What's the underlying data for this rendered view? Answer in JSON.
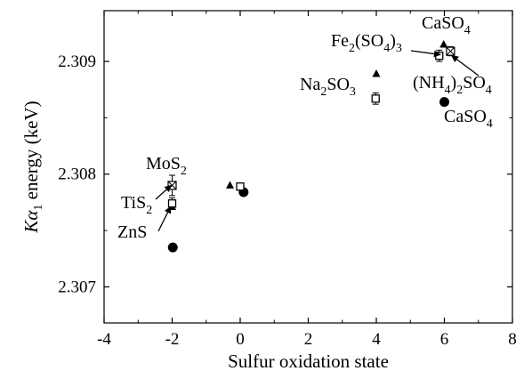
{
  "chart_data": {
    "type": "scatter",
    "title": "",
    "xlabel": "Sulfur oxidation state",
    "ylabel": {
      "base": "K",
      "greek": "α",
      "sub": "1",
      "rest": " energy (keV)"
    },
    "xlim": [
      -4,
      8
    ],
    "ylim": [
      2.30668,
      2.30945
    ],
    "xticks": [
      -4,
      -2,
      0,
      2,
      4,
      6,
      8
    ],
    "xtick_labels": [
      "-4",
      "-2",
      "0",
      "2",
      "4",
      "6",
      "8"
    ],
    "yticks": [
      2.307,
      2.308,
      2.309
    ],
    "ytick_labels": [
      "2.307",
      "2.308",
      "2.309"
    ],
    "grid": false,
    "series": [
      {
        "marker": "filled-circle",
        "color": "#000000",
        "points": [
          {
            "x": -1.98,
            "y": 2.30735
          },
          {
            "x": 0.1,
            "y": 2.30784
          },
          {
            "x": 6.0,
            "y": 2.30864
          }
        ]
      },
      {
        "marker": "filled-triangle",
        "color": "#000000",
        "points": [
          {
            "x": -2.0,
            "y": 2.30771
          },
          {
            "x": -0.3,
            "y": 2.3079
          },
          {
            "x": 4.0,
            "y": 2.30889
          },
          {
            "x": 5.98,
            "y": 2.30915
          }
        ]
      },
      {
        "marker": "open-square",
        "color": "#000000",
        "points": [
          {
            "x": -2.0,
            "y": 2.30774,
            "err": 5e-05
          },
          {
            "x": 0.0,
            "y": 2.30789,
            "err": 2e-05
          },
          {
            "x": 3.98,
            "y": 2.30867,
            "err": 5e-05
          },
          {
            "x": 5.85,
            "y": 2.30905,
            "err": 5e-05
          }
        ]
      },
      {
        "marker": "crossed-square",
        "color": "#000000",
        "points": [
          {
            "x": -2.0,
            "y": 2.3079,
            "err": 9e-05
          },
          {
            "x": 6.18,
            "y": 2.30909,
            "err": 4e-05
          }
        ]
      }
    ],
    "annotations": [
      {
        "name": "mos2",
        "parts": [
          [
            "MoS",
            ""
          ],
          [
            "2",
            "sub"
          ]
        ]
      },
      {
        "name": "tis2",
        "parts": [
          [
            "TiS",
            ""
          ],
          [
            "2",
            "sub"
          ]
        ]
      },
      {
        "name": "zns",
        "parts": [
          [
            "ZnS",
            ""
          ]
        ]
      },
      {
        "name": "fe2so43",
        "parts": [
          [
            "Fe",
            ""
          ],
          [
            "2",
            "sub"
          ],
          [
            "(SO",
            ""
          ],
          [
            "4",
            "sub"
          ],
          [
            ")",
            ""
          ],
          [
            "3",
            "sub"
          ]
        ]
      },
      {
        "name": "caso4-top",
        "parts": [
          [
            "CaSO",
            ""
          ],
          [
            "4",
            "sub"
          ]
        ]
      },
      {
        "name": "na2so3",
        "parts": [
          [
            "Na",
            ""
          ],
          [
            "2",
            "sub"
          ],
          [
            "SO",
            ""
          ],
          [
            "3",
            "sub"
          ]
        ]
      },
      {
        "name": "nh42so4",
        "parts": [
          [
            "(NH",
            ""
          ],
          [
            "4",
            "sub"
          ],
          [
            ")",
            ""
          ],
          [
            "2",
            "sub"
          ],
          [
            "SO",
            ""
          ],
          [
            "4",
            "sub"
          ]
        ]
      },
      {
        "name": "caso4-bottom",
        "parts": [
          [
            "CaSO",
            ""
          ],
          [
            "4",
            "sub"
          ]
        ]
      }
    ]
  }
}
